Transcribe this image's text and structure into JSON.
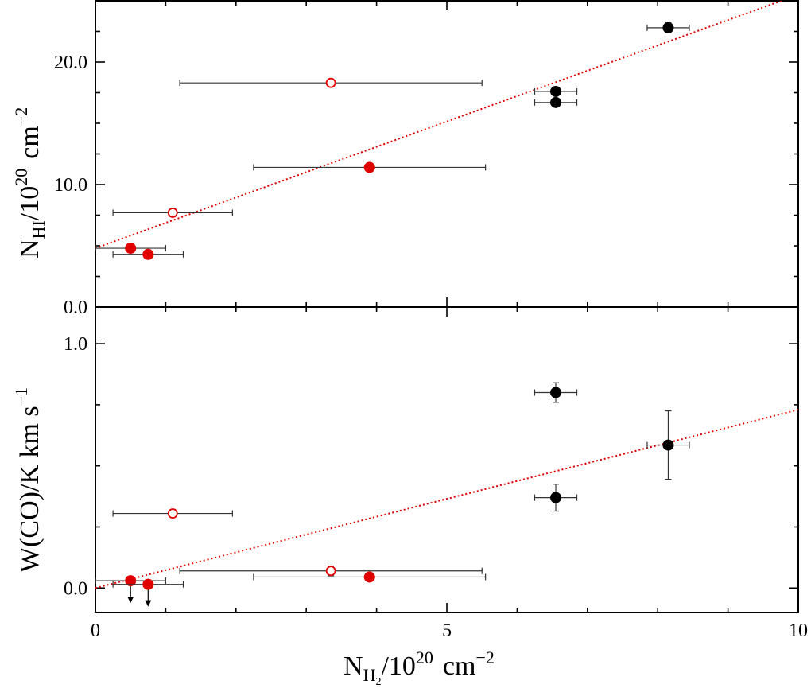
{
  "chart_data": [
    {
      "type": "scatter",
      "panel": "top",
      "ylabel": {
        "base": "N",
        "sub": "HI",
        "rest": "/10",
        "sup": "20",
        "unit": "cm",
        "unit_sup": "−2"
      },
      "xlim": [
        0,
        10
      ],
      "ylim": [
        0,
        25
      ],
      "yticks_major": [
        0,
        10,
        20
      ],
      "ytick_labels": [
        "0.0",
        "10.0",
        "20.0"
      ],
      "fit_line": {
        "x": [
          0,
          10
        ],
        "y": [
          4.8,
          25.5
        ],
        "color": "#e00000",
        "style": "dotted"
      },
      "points": [
        {
          "x": 8.15,
          "y": 22.8,
          "xerr": [
            0.3,
            0.3
          ],
          "yerr": [
            0.4,
            0.4
          ],
          "color": "#000000",
          "filled": true
        },
        {
          "x": 6.55,
          "y": 17.6,
          "xerr": [
            0.3,
            0.3
          ],
          "yerr": [
            0,
            0
          ],
          "color": "#000000",
          "filled": true
        },
        {
          "x": 6.55,
          "y": 16.7,
          "xerr": [
            0.3,
            0.3
          ],
          "yerr": [
            0,
            0
          ],
          "color": "#000000",
          "filled": true
        },
        {
          "x": 3.35,
          "y": 18.3,
          "xerr": [
            2.15,
            2.15
          ],
          "yerr": [
            0,
            0
          ],
          "color": "#e00000",
          "filled": false
        },
        {
          "x": 3.9,
          "y": 11.4,
          "xerr": [
            1.65,
            1.65
          ],
          "yerr": [
            0,
            0
          ],
          "color": "#e00000",
          "filled": true
        },
        {
          "x": 1.1,
          "y": 7.7,
          "xerr": [
            0.85,
            0.85
          ],
          "yerr": [
            0,
            0
          ],
          "color": "#e00000",
          "filled": false
        },
        {
          "x": 0.5,
          "y": 4.8,
          "xerr": [
            0.5,
            0.5
          ],
          "yerr": [
            0,
            0
          ],
          "color": "#e00000",
          "filled": true
        },
        {
          "x": 0.75,
          "y": 4.3,
          "xerr": [
            0.5,
            0.5
          ],
          "yerr": [
            0,
            0
          ],
          "color": "#e00000",
          "filled": true
        }
      ]
    },
    {
      "type": "scatter",
      "panel": "bottom",
      "ylabel": {
        "text": "W(CO)/K km s",
        "sup": "−1"
      },
      "xlabel": {
        "base": "N",
        "sub": "H",
        "subsub": "2",
        "rest": "/10",
        "sup": "20",
        "unit": "cm",
        "unit_sup": "−2"
      },
      "xlim": [
        0,
        10
      ],
      "ylim": [
        -0.1,
        1.15
      ],
      "yticks_major": [
        0,
        1
      ],
      "ytick_labels": [
        "0.0",
        "1.0"
      ],
      "xticks_major": [
        0,
        5,
        10
      ],
      "xtick_labels": [
        "0",
        "5",
        "10"
      ],
      "fit_line": {
        "x": [
          0,
          10
        ],
        "y": [
          0.0,
          0.73
        ],
        "color": "#e00000",
        "style": "dotted"
      },
      "points": [
        {
          "x": 6.55,
          "y": 0.8,
          "xerr": [
            0.3,
            0.3
          ],
          "yerr": [
            0.04,
            0.04
          ],
          "color": "#000000",
          "filled": true
        },
        {
          "x": 8.15,
          "y": 0.585,
          "xerr": [
            0.3,
            0.3
          ],
          "yerr": [
            0.14,
            0.14
          ],
          "color": "#000000",
          "filled": true
        },
        {
          "x": 6.55,
          "y": 0.37,
          "xerr": [
            0.3,
            0.3
          ],
          "yerr": [
            0.055,
            0.055
          ],
          "color": "#000000",
          "filled": true
        },
        {
          "x": 1.1,
          "y": 0.305,
          "xerr": [
            0.85,
            0.85
          ],
          "yerr": [
            0,
            0
          ],
          "color": "#e00000",
          "filled": false
        },
        {
          "x": 3.35,
          "y": 0.07,
          "xerr": [
            2.15,
            2.15
          ],
          "yerr": [
            0.02,
            0.02
          ],
          "color": "#e00000",
          "filled": false
        },
        {
          "x": 3.9,
          "y": 0.045,
          "xerr": [
            1.65,
            1.65
          ],
          "yerr": [
            0,
            0
          ],
          "color": "#e00000",
          "filled": true
        },
        {
          "x": 0.5,
          "y": 0.03,
          "xerr": [
            0.5,
            0.5
          ],
          "yerr": [
            0,
            0
          ],
          "color": "#e00000",
          "filled": true,
          "upper_limit": true
        },
        {
          "x": 0.75,
          "y": 0.015,
          "xerr": [
            0.5,
            0.5
          ],
          "yerr": [
            0,
            0
          ],
          "color": "#e00000",
          "filled": true,
          "upper_limit": true
        }
      ]
    }
  ]
}
